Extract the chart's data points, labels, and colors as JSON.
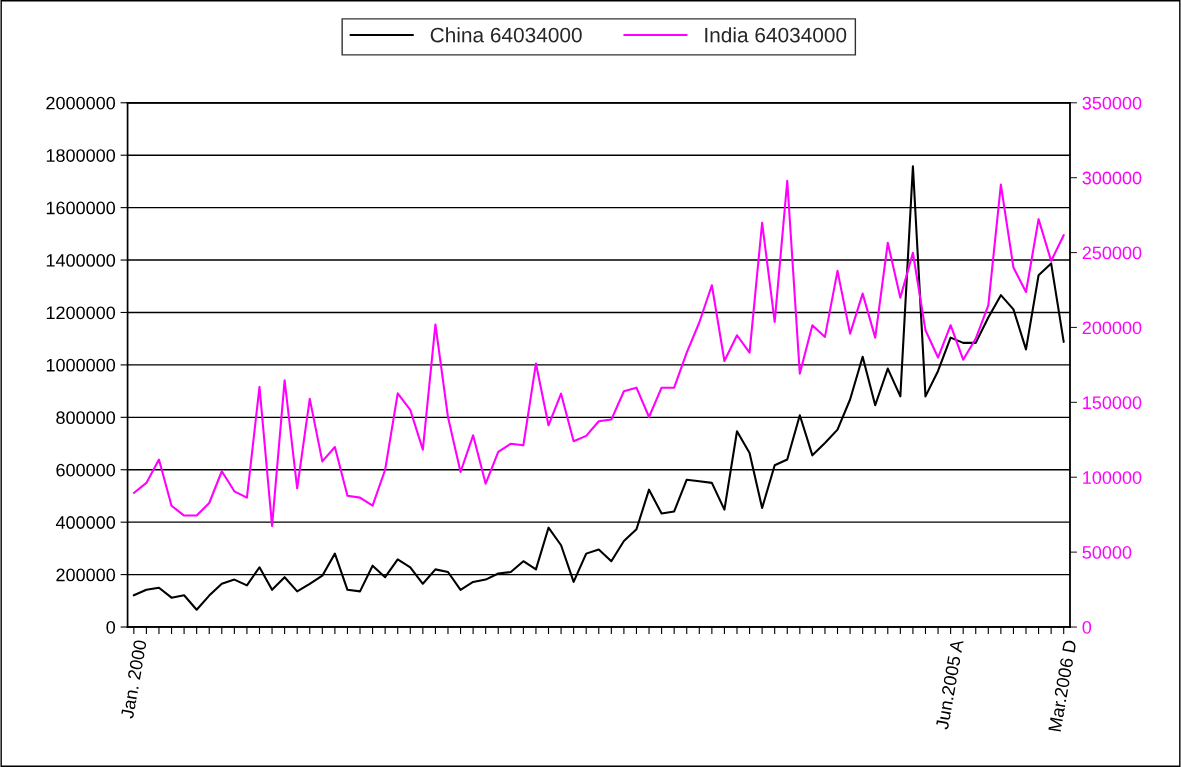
{
  "chart_data": {
    "type": "line",
    "categories": [
      "Jan. 2000",
      null,
      null,
      null,
      null,
      null,
      null,
      null,
      null,
      null,
      null,
      null,
      null,
      null,
      null,
      null,
      null,
      null,
      null,
      null,
      null,
      null,
      null,
      null,
      null,
      null,
      null,
      null,
      null,
      null,
      null,
      null,
      null,
      null,
      null,
      null,
      null,
      null,
      null,
      null,
      null,
      null,
      null,
      null,
      null,
      null,
      null,
      null,
      null,
      null,
      null,
      null,
      null,
      null,
      null,
      null,
      null,
      null,
      null,
      null,
      null,
      null,
      null,
      null,
      null,
      "Jun.2005 A",
      null,
      null,
      null,
      null,
      null,
      null,
      null,
      null,
      "Mar.2006 D"
    ],
    "series": [
      {
        "name": "China 64034000",
        "color": "#000000",
        "values": [
          121000,
          142000,
          150000,
          112000,
          121000,
          66000,
          120000,
          165000,
          181000,
          159000,
          228000,
          142000,
          190000,
          136000,
          165000,
          196000,
          280000,
          142000,
          136000,
          234000,
          190000,
          258000,
          228000,
          165000,
          220000,
          210000,
          142000,
          172000,
          181000,
          204000,
          210000,
          251000,
          220000,
          379000,
          312000,
          172000,
          280000,
          296000,
          251000,
          328000,
          373000,
          524000,
          433000,
          441000,
          562000,
          556000,
          550000,
          448000,
          747000,
          664000,
          454000,
          617000,
          639000,
          808000,
          655000,
          702000,
          753000,
          868000,
          1031000,
          846000,
          986000,
          880000,
          1758000,
          880000,
          977000,
          1104000,
          1084000,
          1084000,
          1181000,
          1266000,
          1212000,
          1059000,
          1342000,
          1387000,
          1088000
        ]
      },
      {
        "name": "India 64034000",
        "color": "#ff00ff",
        "axis": "y2",
        "values": [
          89500,
          96200,
          111800,
          81000,
          74400,
          74400,
          82800,
          104000,
          90600,
          86400,
          160300,
          67500,
          164700,
          92600,
          152300,
          110600,
          120200,
          87700,
          86400,
          81000,
          105000,
          156000,
          145000,
          118400,
          202000,
          140200,
          103500,
          128000,
          95700,
          116900,
          122400,
          121300,
          175900,
          134700,
          155800,
          124000,
          127600,
          137400,
          138500,
          157400,
          159800,
          140200,
          159800,
          159800,
          183200,
          203300,
          228200,
          177600,
          194800,
          183200,
          269800,
          203700,
          297900,
          169200,
          201500,
          193700,
          237800,
          195900,
          222600,
          193200,
          256500,
          219900,
          249800,
          198100,
          179900,
          201500,
          178500,
          192600,
          214800,
          295400,
          240000,
          223700,
          272300,
          244400,
          261600
        ]
      }
    ],
    "ylim": [
      0,
      2000000
    ],
    "yticks": [
      0,
      200000,
      400000,
      600000,
      800000,
      1000000,
      1200000,
      1400000,
      1600000,
      1800000,
      2000000
    ],
    "y2lim": [
      0,
      350000
    ],
    "y2ticks": [
      0,
      50000,
      100000,
      150000,
      200000,
      250000,
      300000,
      350000
    ],
    "grid": "y",
    "legend": "top",
    "marker": "none",
    "line_style": "solid"
  }
}
